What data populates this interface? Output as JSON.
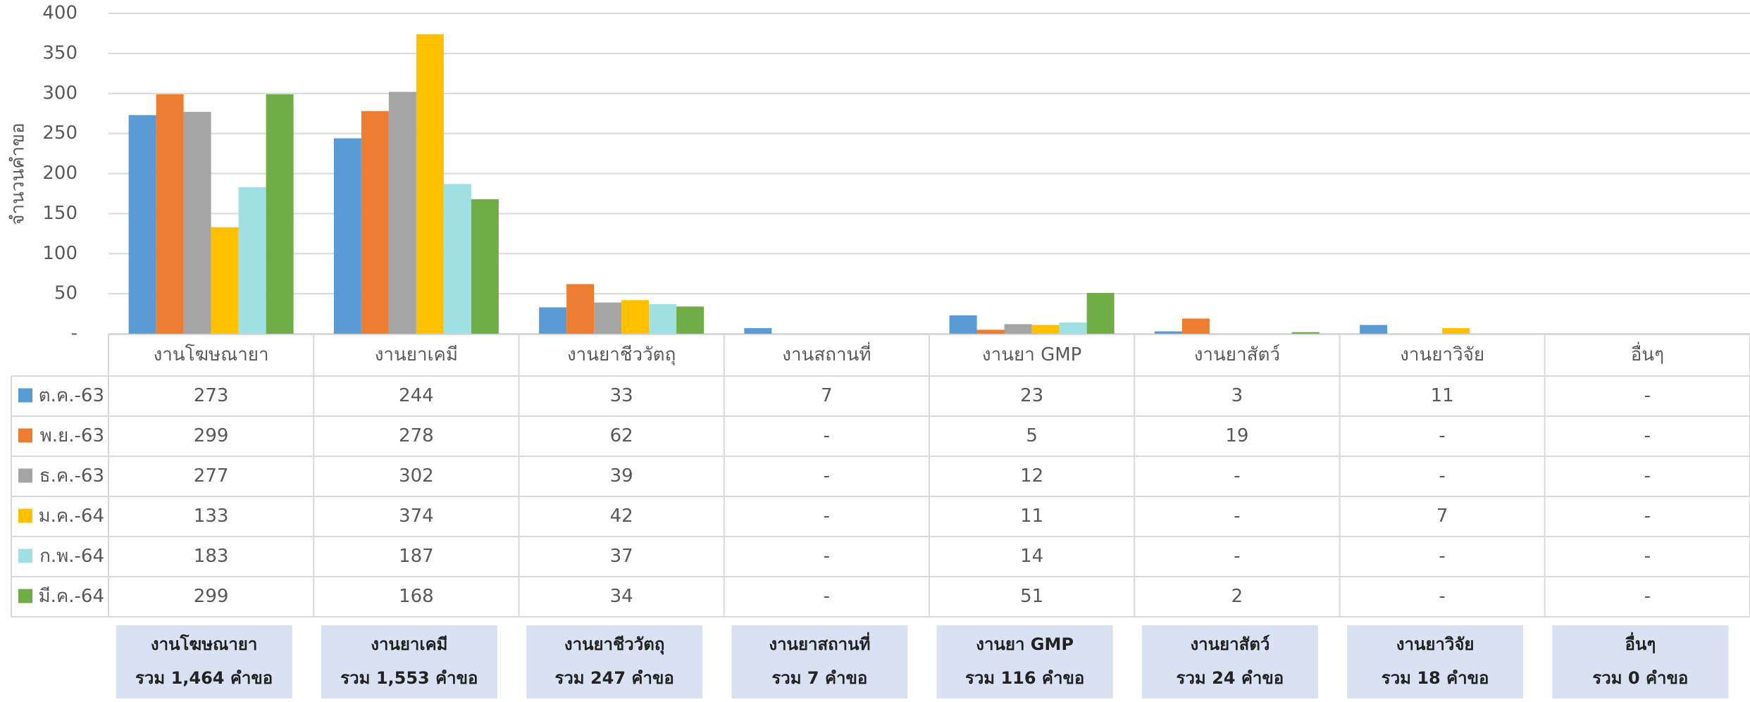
{
  "chart_data": {
    "type": "bar",
    "y_label": "จำนวนคำขอ",
    "categories": [
      "งานโฆษณายา",
      "งานยาเคมี",
      "งานยาชีววัตถุ",
      "งานสถานที่",
      "งานยา GMP",
      "งานยาสัตว์",
      "งานยาวิจัย",
      "อื่นๆ"
    ],
    "series": [
      {
        "name": "ต.ค.-63",
        "color": "#5b9bd5",
        "values": [
          273,
          244,
          33,
          7,
          23,
          3,
          11,
          null
        ],
        "value_labels": [
          "273",
          "244",
          "33",
          "7",
          "23",
          "3",
          "11",
          "-"
        ]
      },
      {
        "name": "พ.ย.-63",
        "color": "#ed7d31",
        "values": [
          299,
          278,
          62,
          null,
          5,
          19,
          null,
          null
        ],
        "value_labels": [
          "299",
          "278",
          "62",
          "-",
          "5",
          "19",
          "-",
          "-"
        ]
      },
      {
        "name": "ธ.ค.-63",
        "color": "#a5a5a5",
        "values": [
          277,
          302,
          39,
          null,
          12,
          null,
          null,
          null
        ],
        "value_labels": [
          "277",
          "302",
          "39",
          "-",
          "12",
          "-",
          "-",
          "-"
        ]
      },
      {
        "name": "ม.ค.-64",
        "color": "#ffc000",
        "values": [
          133,
          374,
          42,
          null,
          11,
          null,
          7,
          null
        ],
        "value_labels": [
          "133",
          "374",
          "42",
          "-",
          "11",
          "-",
          "7",
          "-"
        ]
      },
      {
        "name": "ก.พ.-64",
        "color": "#a0e0e4",
        "values": [
          183,
          187,
          37,
          null,
          14,
          null,
          null,
          null
        ],
        "value_labels": [
          "183",
          "187",
          "37",
          "-",
          "14",
          "-",
          "-",
          "-"
        ]
      },
      {
        "name": "มี.ค.-64",
        "color": "#70ad47",
        "values": [
          299,
          168,
          34,
          null,
          51,
          2,
          null,
          null
        ],
        "value_labels": [
          "299",
          "168",
          "34",
          "-",
          "51",
          "2",
          "-",
          "-"
        ]
      }
    ],
    "ylim": [
      0,
      400
    ],
    "yticks": [
      {
        "value": 0,
        "label": "-"
      },
      50,
      100,
      150,
      200,
      250,
      300,
      350,
      400
    ],
    "grid": true,
    "totals": [
      {
        "name": "งานโฆษณายา",
        "label": "รวม  1,464 คำขอ"
      },
      {
        "name": "งานยาเคมี",
        "label": "รวม 1,553 คำขอ"
      },
      {
        "name": "งานยาชีววัตถุ",
        "label": "รวม 247 คำขอ"
      },
      {
        "name": "งานยาสถานที่",
        "label": "รวม 7 คำขอ"
      },
      {
        "name": "งานยา GMP",
        "label": "รวม 116 คำขอ"
      },
      {
        "name": "งานยาสัตว์",
        "label": "รวม 24 คำขอ"
      },
      {
        "name": "งานยาวิจัย",
        "label": "รวม 18 คำขอ"
      },
      {
        "name": "อื่นๆ",
        "label": "รวม 0 คำขอ"
      }
    ]
  }
}
